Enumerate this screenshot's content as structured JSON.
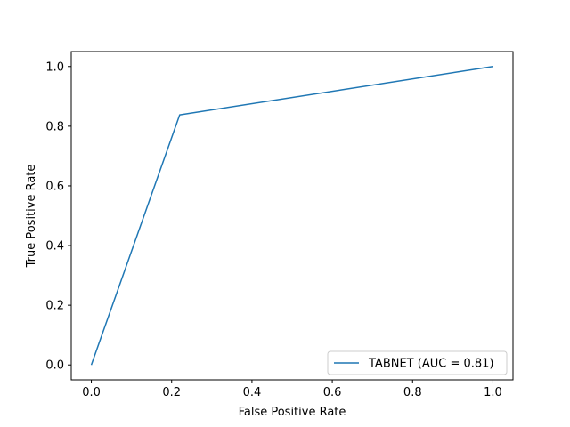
{
  "chart_data": {
    "type": "line",
    "title": "",
    "xlabel": "False Positive Rate",
    "ylabel": "True Positive Rate",
    "xlim": [
      -0.05,
      1.05
    ],
    "ylim": [
      -0.05,
      1.05
    ],
    "xticks": [
      "0.0",
      "0.2",
      "0.4",
      "0.6",
      "0.8",
      "1.0"
    ],
    "yticks": [
      "0.0",
      "0.2",
      "0.4",
      "0.6",
      "0.8",
      "1.0"
    ],
    "grid": false,
    "legend_position": "lower-right",
    "series": [
      {
        "name": "TABNET (AUC = 0.81)",
        "color": "#1f77b4",
        "x": [
          0.0,
          0.22,
          1.0
        ],
        "y": [
          0.0,
          0.838,
          1.0
        ]
      }
    ]
  }
}
